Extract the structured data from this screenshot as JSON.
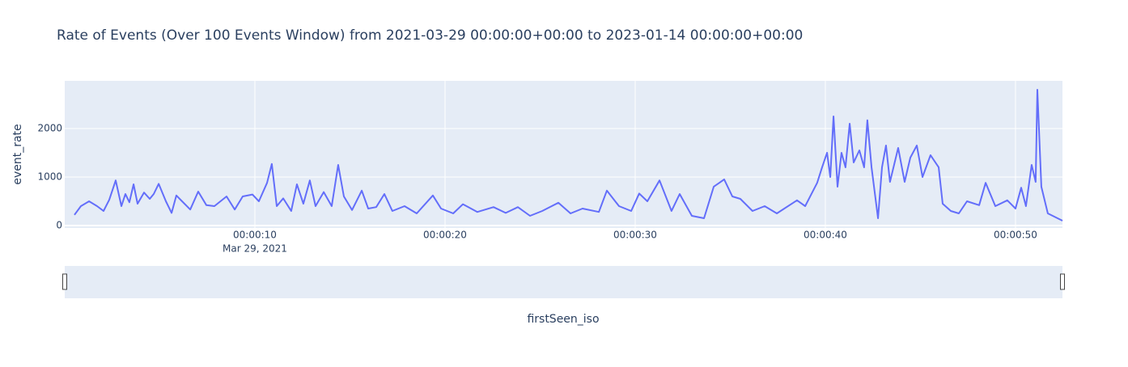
{
  "chart_data": {
    "type": "line",
    "title": "Rate of Events (Over 100 Events Window) from 2021-03-29 00:00:00+00:00 to 2023-01-14 00:00:00+00:00",
    "x_title": "firstSeen_iso",
    "y_title": "event_rate",
    "x_date_label": "Mar 29, 2021",
    "color": "#636efa",
    "grid": true,
    "range_slider": true,
    "x": [
      0.51,
      0.85,
      1.28,
      1.7,
      2.04,
      2.34,
      2.68,
      2.98,
      3.19,
      3.4,
      3.62,
      3.83,
      4.17,
      4.47,
      4.68,
      4.94,
      5.32,
      5.62,
      5.87,
      6.17,
      6.6,
      7.02,
      7.45,
      7.87,
      8.51,
      8.94,
      9.36,
      9.87,
      10.21,
      10.64,
      10.89,
      11.15,
      11.49,
      11.91,
      12.21,
      12.55,
      12.89,
      13.19,
      13.62,
      14.04,
      14.38,
      14.68,
      15.11,
      15.62,
      15.96,
      16.38,
      16.81,
      17.23,
      17.87,
      18.51,
      19.36,
      19.79,
      20.43,
      20.94,
      21.7,
      22.55,
      23.19,
      23.83,
      24.47,
      25.11,
      25.96,
      26.6,
      27.23,
      28.09,
      28.51,
      29.15,
      29.79,
      30.21,
      30.64,
      31.28,
      31.91,
      32.34,
      32.98,
      33.62,
      34.13,
      34.68,
      35.11,
      35.53,
      36.17,
      36.81,
      37.45,
      38.51,
      38.94,
      39.57,
      39.83,
      40.09,
      40.26,
      40.43,
      40.64,
      40.85,
      41.06,
      41.28,
      41.49,
      41.79,
      42.04,
      42.21,
      42.43,
      42.77,
      42.98,
      43.19,
      43.4,
      43.83,
      44.17,
      44.47,
      44.81,
      45.11,
      45.53,
      45.96,
      46.17,
      46.6,
      47.02,
      47.45,
      48.09,
      48.43,
      48.94,
      49.57,
      50.0,
      50.3,
      50.55,
      50.85,
      51.06,
      51.15,
      51.36,
      51.7,
      52.47
    ],
    "values": [
      220,
      400,
      500,
      400,
      300,
      530,
      930,
      400,
      650,
      480,
      850,
      450,
      680,
      550,
      650,
      860,
      500,
      260,
      620,
      500,
      330,
      700,
      420,
      400,
      600,
      330,
      600,
      640,
      500,
      880,
      1270,
      400,
      560,
      300,
      850,
      450,
      930,
      400,
      690,
      400,
      1250,
      600,
      320,
      720,
      350,
      380,
      650,
      300,
      400,
      250,
      620,
      350,
      250,
      440,
      280,
      380,
      260,
      380,
      200,
      300,
      470,
      250,
      350,
      280,
      720,
      400,
      300,
      660,
      500,
      930,
      300,
      650,
      200,
      150,
      800,
      950,
      600,
      550,
      300,
      400,
      250,
      520,
      400,
      880,
      1200,
      1500,
      1000,
      2250,
      800,
      1500,
      1200,
      2100,
      1300,
      1550,
      1200,
      2170,
      1200,
      150,
      1200,
      1650,
      900,
      1600,
      900,
      1400,
      1650,
      1000,
      1450,
      1200,
      450,
      300,
      250,
      500,
      420,
      880,
      400,
      520,
      350,
      780,
      400,
      1250,
      900,
      2800,
      800,
      250,
      100
    ],
    "xlim": [
      0,
      52.47
    ],
    "xticks": [
      {
        "value": 10,
        "label": "00:00:10"
      },
      {
        "value": 20,
        "label": "00:00:20"
      },
      {
        "value": 30,
        "label": "00:00:30"
      },
      {
        "value": 40,
        "label": "00:00:40"
      },
      {
        "value": 50,
        "label": "00:00:50"
      }
    ],
    "ylim": [
      -50,
      2983
    ],
    "yticks": [
      0,
      1000,
      2000
    ]
  }
}
